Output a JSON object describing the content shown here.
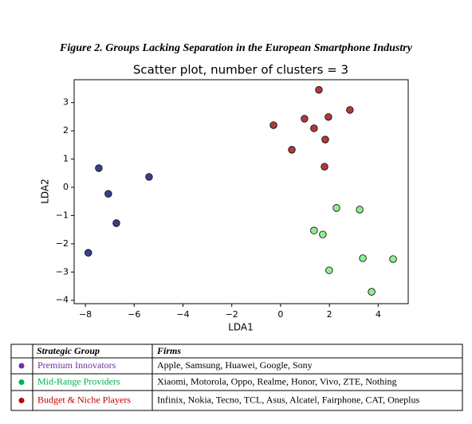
{
  "figure_title": "Figure 2. Groups Lacking Separation in the European Smartphone Industry",
  "chart_data": {
    "type": "scatter",
    "title": "Scatter plot, number of clusters = 3",
    "x_label": "LDA1",
    "y_label": "LDA2",
    "xlim": [
      -8.46,
      5.23
    ],
    "ylim": [
      -4.12,
      3.81
    ],
    "xticks": [
      {
        "value": -8,
        "label": "−8"
      },
      {
        "value": -6,
        "label": "−6"
      },
      {
        "value": -4,
        "label": "−4"
      },
      {
        "value": -2,
        "label": "−2"
      },
      0,
      2,
      4
    ],
    "yticks": [
      {
        "value": -4,
        "label": "−4"
      },
      {
        "value": -3,
        "label": "−3"
      },
      {
        "value": -2,
        "label": "−2"
      },
      {
        "value": -1,
        "label": "−1"
      },
      0,
      1,
      2,
      3
    ],
    "series": [
      {
        "color": "#3b3f8f",
        "x": [
          -7.45,
          -7.06,
          -6.73,
          -5.39,
          -7.88
        ],
        "values": [
          0.68,
          -0.23,
          -1.27,
          0.37,
          -2.32
        ]
      },
      {
        "color": "#b03a3a",
        "x": [
          1.57,
          2.84,
          -0.29,
          0.98,
          1.96,
          1.37,
          1.83,
          0.46,
          1.8
        ],
        "values": [
          3.45,
          2.74,
          2.2,
          2.43,
          2.49,
          2.09,
          1.69,
          1.33,
          0.73
        ]
      },
      {
        "color": "#90ee90",
        "x": [
          2.29,
          3.24,
          1.37,
          1.73,
          1.99,
          3.37,
          4.61,
          3.73
        ],
        "values": [
          -0.73,
          -0.79,
          -1.53,
          -1.67,
          -2.94,
          -2.51,
          -2.54,
          -3.7
        ]
      }
    ]
  },
  "table": {
    "header": [
      "Strategic Group",
      "Firms"
    ],
    "rows": [
      {
        "color": "#7030a0",
        "group": "Premium  Innovators",
        "firms": "Apple, Samsung, Huawei, Google, Sony"
      },
      {
        "color": "#00b050",
        "group": "Mid-Range Providers",
        "firms": "Xiaomi,  Motorola, Oppo, Realme,  Honor, Vivo,  ZTE, Nothing"
      },
      {
        "color": "#c00000",
        "group": "Budget & Niche Players",
        "firms": "Infinix,  Nokia, Tecno, TCL,  Asus, Alcatel, Fairphone, CAT, Oneplus"
      }
    ]
  }
}
